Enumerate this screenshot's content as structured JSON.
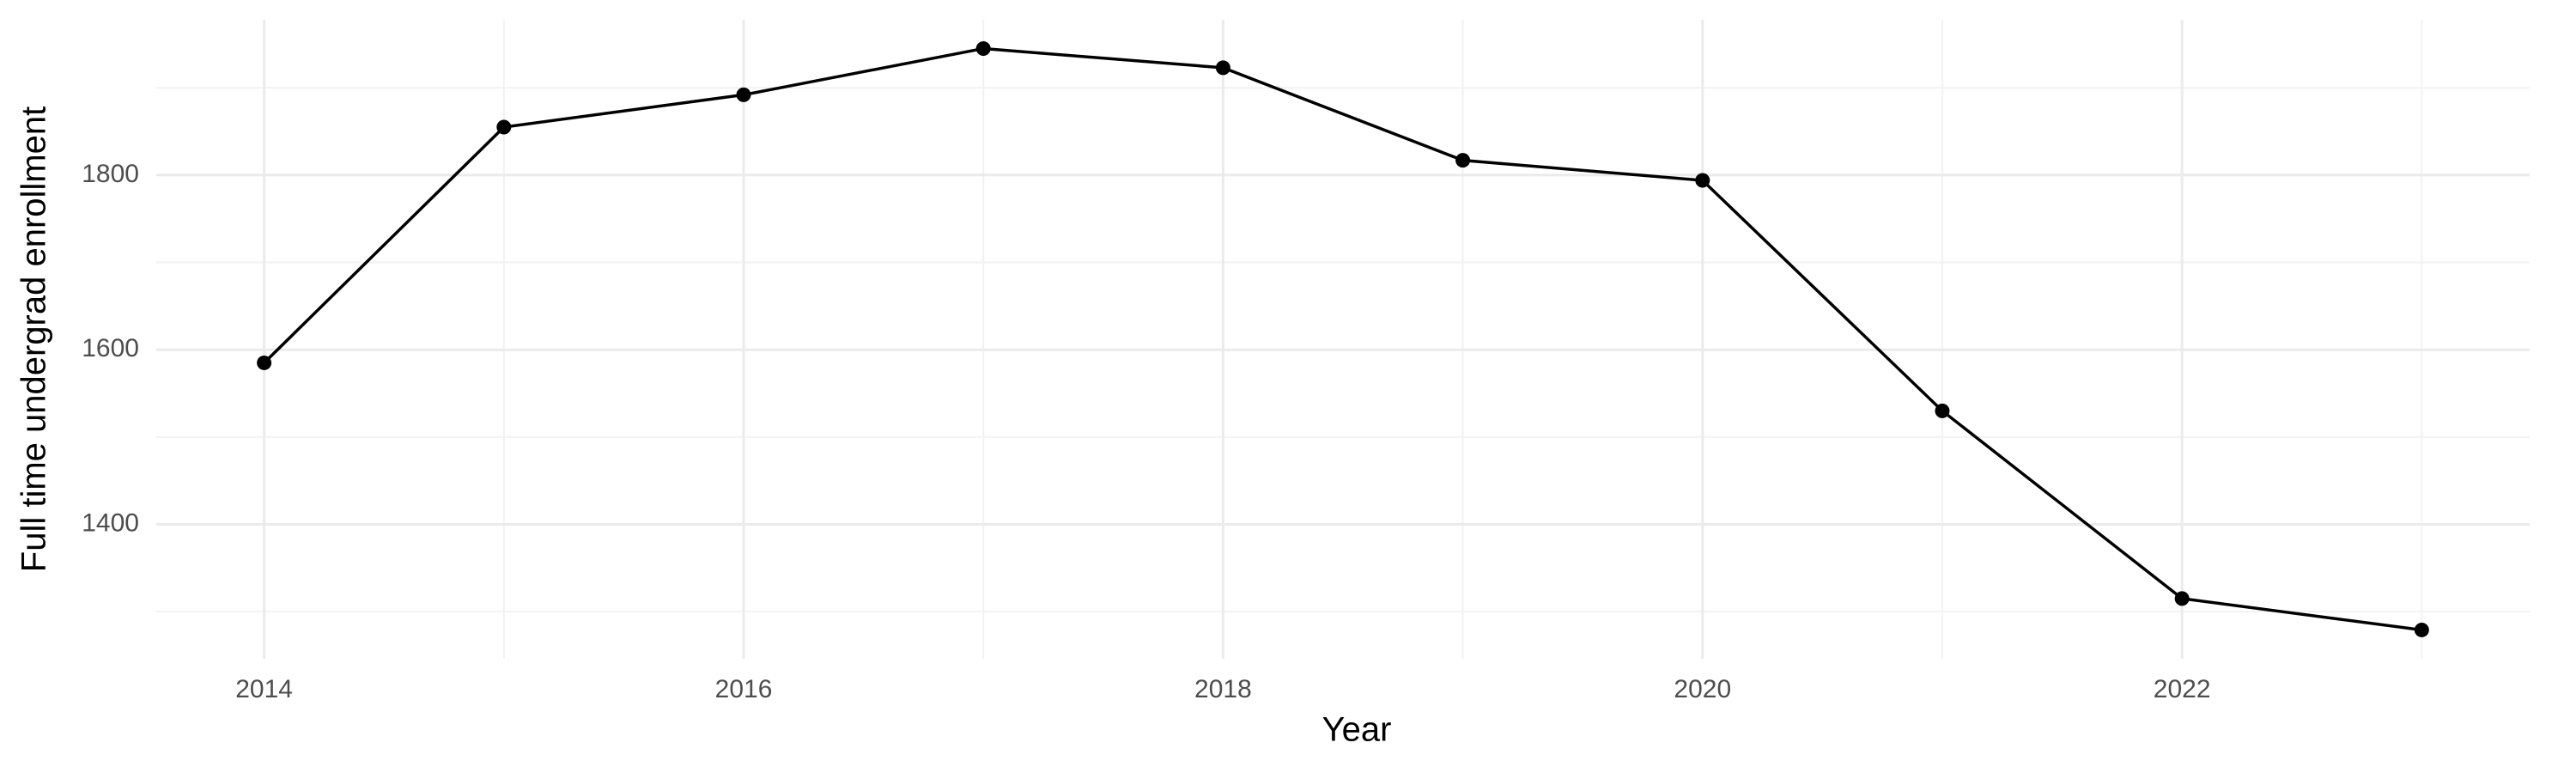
{
  "chart_data": {
    "type": "line",
    "x_label": "Year",
    "y_label": "Full time undergrad enrollment",
    "x": [
      2014,
      2015,
      2016,
      2017,
      2018,
      2019,
      2020,
      2021,
      2022,
      2023
    ],
    "series": [
      {
        "name": "Full time undergrad enrollment",
        "color": "#000000",
        "values": [
          1585,
          1855,
          1892,
          1945,
          1923,
          1817,
          1794,
          1530,
          1315,
          1279
        ]
      }
    ],
    "xlim": [
      2013.55,
      2023.45
    ],
    "xticks": [
      2014,
      2016,
      2018,
      2020,
      2022
    ],
    "xminor": [
      2015,
      2017,
      2019,
      2021,
      2023
    ],
    "ylim": [
      1246,
      1978
    ],
    "yticks": [
      1400,
      1600,
      1800
    ],
    "yminor": [
      1300,
      1500,
      1700,
      1900
    ],
    "grid": true
  }
}
